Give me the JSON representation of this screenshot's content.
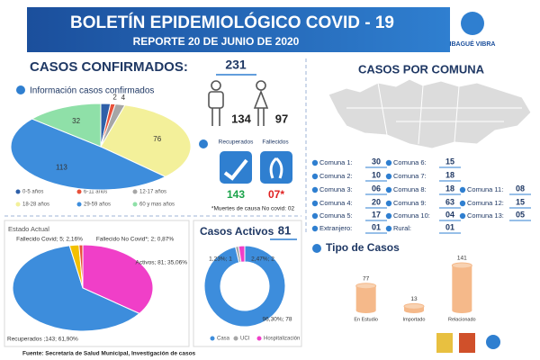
{
  "header": {
    "title": "BOLETÍN EPIDEMIOLÓGICO COVID - 19",
    "subtitle": "REPORTE 20 DE JUNIO DE 2020",
    "logo": "IBAGUÉ VIBRA"
  },
  "confirmed": {
    "label": "CASOS CONFIRMADOS:",
    "total": "231",
    "men": "134",
    "women": "97"
  },
  "outcomes": {
    "recovered_label": "Recuperados",
    "recovered": "143",
    "deceased_label": "Fallecidos",
    "deceased": "07*",
    "note": "*Muertes de causa No covid: 02"
  },
  "comunas": {
    "title": "CASOS POR COMUNA",
    "items": [
      {
        "label": "Comuna 1:",
        "value": "30"
      },
      {
        "label": "Comuna 2:",
        "value": "10"
      },
      {
        "label": "Comuna 3:",
        "value": "06"
      },
      {
        "label": "Comuna 4:",
        "value": "20"
      },
      {
        "label": "Comuna 5:",
        "value": "17"
      },
      {
        "label": "Extranjero:",
        "value": "01"
      },
      {
        "label": "Comuna 6:",
        "value": "15"
      },
      {
        "label": "Comuna 7:",
        "value": "18"
      },
      {
        "label": "Comuna 8:",
        "value": "18"
      },
      {
        "label": "Comuna 9:",
        "value": "63"
      },
      {
        "label": "Comuna 10:",
        "value": "04"
      },
      {
        "label": "Rural:",
        "value": "01"
      },
      {
        "label": "Comuna 11:",
        "value": "08"
      },
      {
        "label": "Comuna 12:",
        "value": "15"
      },
      {
        "label": "Comuna 13:",
        "value": "05"
      }
    ]
  },
  "source": "Fuente: Secretaría de Salud Municipal, Investigación de casos",
  "chart_data": [
    {
      "type": "pie",
      "title": "Información casos confirmados",
      "categories": [
        "0-5 años",
        "6-11 años",
        "12-17 años",
        "18-28 años",
        "29-59 años",
        "60 y mas años"
      ],
      "values": [
        4,
        2,
        4,
        76,
        113,
        32
      ],
      "value_labels": [
        null,
        "2",
        "4",
        "76",
        "113",
        "32"
      ],
      "colors": [
        "#2e5fa8",
        "#e8513a",
        "#a6a6a6",
        "#f3f09a",
        "#3d8ddc",
        "#8fe0a8"
      ]
    },
    {
      "type": "pie",
      "title": "Estado Actual",
      "categories": [
        "Activos",
        "Recuperados",
        "Fallecido Covid",
        "Fallecido No Covid*"
      ],
      "values": [
        81,
        143,
        5,
        2
      ],
      "value_labels": [
        "Activos; 81; 35,06%",
        "Recuperados ;143; 61,90%",
        "Fallecido Covid; 5; 2,16%",
        "Fallecido No Covid*; 2; 0,87%"
      ],
      "colors": [
        "#f03fc8",
        "#3d8ddc",
        "#f2c000",
        "#e8513a"
      ]
    },
    {
      "type": "donut",
      "title": "Casos Activos",
      "total": 81,
      "categories": [
        "Casa",
        "UCI",
        "Hospitalización"
      ],
      "values": [
        78,
        1,
        2
      ],
      "value_labels": [
        "96,30%; 78",
        "1,23%; 1",
        "2,47%; 2"
      ],
      "colors": [
        "#3d8ddc",
        "#a6a6a6",
        "#f03fc8"
      ]
    },
    {
      "type": "bar",
      "title": "Tipo de Casos",
      "categories": [
        "En Estudio",
        "Importado",
        "Relacionado"
      ],
      "values": [
        77,
        13,
        141
      ],
      "color": "#f5b98a"
    }
  ]
}
